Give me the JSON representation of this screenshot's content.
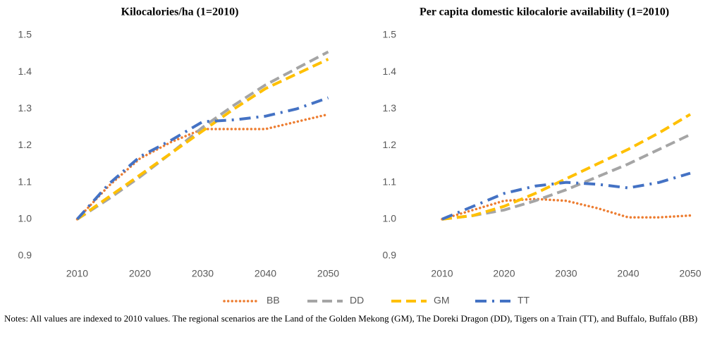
{
  "chart_data": [
    {
      "type": "line",
      "title": "Kilocalories/ha (1=2010)",
      "x": [
        2010,
        2015,
        2020,
        2025,
        2030,
        2035,
        2040,
        2045,
        2050
      ],
      "series": [
        {
          "name": "BB",
          "color": "#ed7d31",
          "style": "dotted",
          "values": [
            1.0,
            1.09,
            1.165,
            1.21,
            1.245,
            1.245,
            1.245,
            1.265,
            1.285
          ]
        },
        {
          "name": "DD",
          "color": "#a5a5a5",
          "style": "dashed",
          "values": [
            1.0,
            1.055,
            1.115,
            1.18,
            1.25,
            1.31,
            1.365,
            1.41,
            1.455
          ]
        },
        {
          "name": "GM",
          "color": "#ffc000",
          "style": "dashed",
          "values": [
            1.0,
            1.06,
            1.12,
            1.18,
            1.24,
            1.3,
            1.355,
            1.395,
            1.435
          ]
        },
        {
          "name": "TT",
          "color": "#4472c4",
          "style": "dashdot",
          "values": [
            1.0,
            1.095,
            1.17,
            1.215,
            1.265,
            1.27,
            1.28,
            1.3,
            1.33
          ]
        }
      ],
      "xlim": [
        2005,
        2055
      ],
      "xticks": [
        2010,
        2020,
        2030,
        2040,
        2050
      ],
      "ylim": [
        0.9,
        1.5
      ],
      "yticks": [
        0.9,
        {
          "value": 1,
          "label": "1.0"
        },
        1.1,
        1.2,
        1.3,
        1.4,
        1.5
      ]
    },
    {
      "type": "line",
      "title": "Per capita domestic kilocalorie availability (1=2010)",
      "x": [
        2010,
        2015,
        2020,
        2025,
        2030,
        2035,
        2040,
        2045,
        2050
      ],
      "series": [
        {
          "name": "BB",
          "color": "#ed7d31",
          "style": "dotted",
          "values": [
            1.0,
            1.025,
            1.05,
            1.055,
            1.05,
            1.03,
            1.005,
            1.005,
            1.01
          ]
        },
        {
          "name": "DD",
          "color": "#a5a5a5",
          "style": "dashed",
          "values": [
            1.0,
            1.01,
            1.025,
            1.05,
            1.08,
            1.115,
            1.15,
            1.19,
            1.23
          ]
        },
        {
          "name": "GM",
          "color": "#ffc000",
          "style": "dashed",
          "values": [
            1.0,
            1.01,
            1.035,
            1.07,
            1.11,
            1.15,
            1.19,
            1.235,
            1.285
          ]
        },
        {
          "name": "TT",
          "color": "#4472c4",
          "style": "dashdot",
          "values": [
            1.0,
            1.035,
            1.07,
            1.09,
            1.1,
            1.095,
            1.085,
            1.1,
            1.125
          ]
        }
      ],
      "xlim": [
        2005,
        2055
      ],
      "xticks": [
        2010,
        2020,
        2030,
        2040,
        2050
      ],
      "ylim": [
        0.9,
        1.5
      ],
      "yticks": [
        0.9,
        {
          "value": 1,
          "label": "1.0"
        },
        1.1,
        1.2,
        1.3,
        1.4,
        1.5
      ]
    }
  ],
  "notes": "Notes: All values are indexed to 2010 values. The regional scenarios are the Land of the Golden Mekong (GM), The Doreki Dragon (DD), Tigers on a Train (TT), and Buffalo, Buffalo (BB)"
}
